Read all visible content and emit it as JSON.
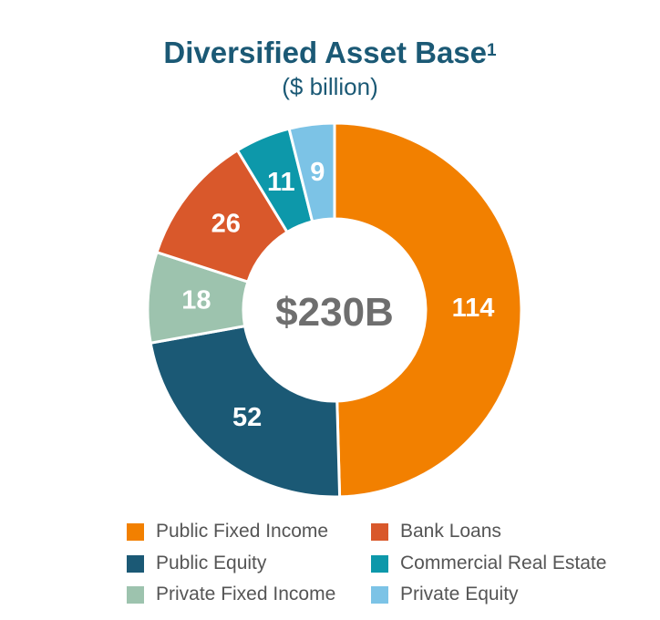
{
  "title": {
    "main": "Diversified Asset Base",
    "footnote": "1",
    "subtitle": "($ billion)"
  },
  "center_label": "$230B",
  "colors": {
    "title": "#1b5975",
    "public_fixed_income": "#f28000",
    "public_equity": "#1b5975",
    "private_fixed_income": "#9dc3ae",
    "bank_loans": "#d9582b",
    "commercial_real_estate": "#0d98aa",
    "private_equity": "#7cc3e6"
  },
  "chart_data": {
    "type": "pie",
    "title": "Diversified Asset Base",
    "subtitle": "($ billion)",
    "center_text": "$230B",
    "categories": [
      "Public Fixed Income",
      "Public Equity",
      "Private Fixed Income",
      "Bank Loans",
      "Commercial Real Estate",
      "Private Equity"
    ],
    "values": [
      114,
      52,
      18,
      26,
      11,
      9
    ],
    "labels": [
      "114",
      "52",
      "18",
      "26",
      "11",
      "9"
    ],
    "colors": [
      "#f28000",
      "#1b5975",
      "#9dc3ae",
      "#d9582b",
      "#0d98aa",
      "#7cc3e6"
    ],
    "donut": true,
    "start_angle_deg": 0,
    "direction": "clockwise",
    "legend_position": "bottom"
  },
  "legend": [
    {
      "label": "Public Fixed Income",
      "color": "#f28000"
    },
    {
      "label": "Bank Loans",
      "color": "#d9582b"
    },
    {
      "label": "Public Equity",
      "color": "#1b5975"
    },
    {
      "label": "Commercial Real Estate",
      "color": "#0d98aa"
    },
    {
      "label": "Private Fixed Income",
      "color": "#9dc3ae"
    },
    {
      "label": "Private Equity",
      "color": "#7cc3e6"
    }
  ]
}
